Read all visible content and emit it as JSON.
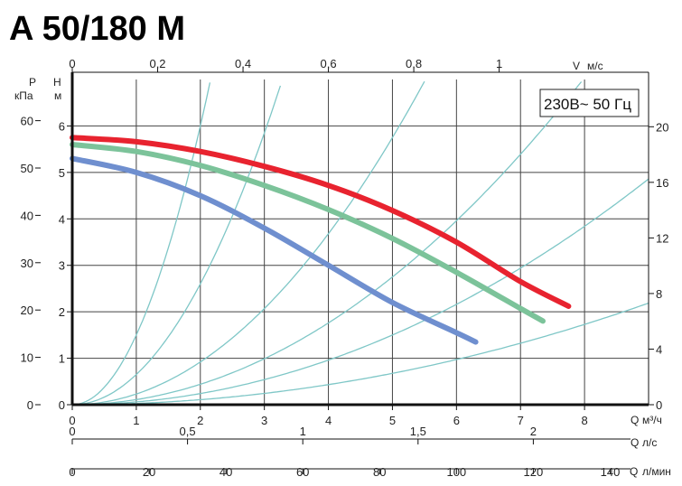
{
  "page_title": "A 50/180 M",
  "colors": {
    "title": "#f4a06b",
    "grid": "#444444",
    "system_curves": "#7fc7c7",
    "curve_max": "#e8232f",
    "curve_mid": "#7cc39a",
    "curve_min": "#6f8fcf"
  },
  "chart_data": {
    "type": "line",
    "title": "A 50/180 M",
    "annotation": "230В~ 50 Гц",
    "grid": true,
    "axes": {
      "x_main": {
        "label": "Q",
        "unit": "м³/ч",
        "range": [
          0,
          9
        ],
        "ticks": [
          "0",
          "1",
          "2",
          "3",
          "4",
          "5",
          "6",
          "7",
          "8"
        ]
      },
      "x_ls": {
        "label": "Q",
        "unit": "л/с",
        "range": [
          0,
          2.5
        ],
        "ticks": [
          "0",
          "0,5",
          "1",
          "1,5",
          "2"
        ]
      },
      "x_lmin": {
        "label": "Q",
        "unit": "л/мин",
        "range": [
          0,
          150
        ],
        "ticks": [
          "0",
          "20",
          "40",
          "60",
          "80",
          "100",
          "120",
          "140"
        ]
      },
      "x_top_velocity": {
        "label": "V",
        "unit": "м/с",
        "range": [
          0,
          1.35
        ],
        "ticks": [
          "0",
          "0,2",
          "0,4",
          "0,6",
          "0,8",
          "1"
        ]
      },
      "y_head": {
        "label": "H",
        "unit": "м",
        "range": [
          0,
          7
        ],
        "ticks": [
          "0",
          "1",
          "2",
          "3",
          "4",
          "5",
          "6"
        ]
      },
      "y_pressure": {
        "label": "P",
        "unit": "кПа",
        "range": [
          0,
          68.7
        ],
        "ticks": [
          "0",
          "10",
          "20",
          "30",
          "40",
          "50",
          "60"
        ]
      },
      "y_right": {
        "range": [
          0,
          23.4
        ],
        "ticks": [
          "0",
          "4",
          "8",
          "12",
          "16",
          "20"
        ]
      }
    },
    "series": [
      {
        "key": "max",
        "x": [
          0,
          1,
          2,
          3,
          4,
          5,
          6,
          7,
          7.75
        ],
        "y": [
          5.75,
          5.66,
          5.45,
          5.13,
          4.72,
          4.18,
          3.5,
          2.65,
          2.12
        ]
      },
      {
        "key": "mid",
        "x": [
          0,
          1,
          2,
          3,
          4,
          5,
          6,
          7,
          7.35
        ],
        "y": [
          5.6,
          5.45,
          5.15,
          4.72,
          4.2,
          3.58,
          2.85,
          2.07,
          1.8
        ]
      },
      {
        "key": "min",
        "x": [
          0,
          1,
          2,
          3,
          4,
          5,
          6,
          6.3
        ],
        "y": [
          5.3,
          5.0,
          4.5,
          3.8,
          3.0,
          2.2,
          1.55,
          1.35
        ]
      }
    ],
    "system_curve_coefficients": [
      1.5,
      0.65,
      0.23,
      0.11,
      0.06,
      0.027
    ]
  }
}
